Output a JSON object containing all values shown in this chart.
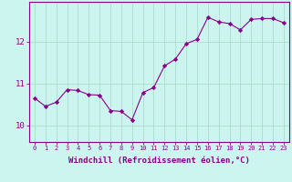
{
  "x": [
    0,
    1,
    2,
    3,
    4,
    5,
    6,
    7,
    8,
    9,
    10,
    11,
    12,
    13,
    14,
    15,
    16,
    17,
    18,
    19,
    20,
    21,
    22,
    23
  ],
  "y": [
    10.65,
    10.45,
    10.55,
    10.85,
    10.83,
    10.73,
    10.72,
    10.35,
    10.33,
    10.13,
    10.78,
    10.9,
    11.42,
    11.58,
    11.95,
    12.05,
    12.58,
    12.47,
    12.43,
    12.28,
    12.53,
    12.55,
    12.55,
    12.45
  ],
  "line_color": "#880088",
  "marker": "D",
  "marker_size": 2.2,
  "bg_color": "#cdf5ef",
  "grid_color": "#aaddcc",
  "axis_color": "#880088",
  "tick_color": "#880088",
  "xlabel": "Windchill (Refroidissement éolien,°C)",
  "xlabel_fontsize": 6.5,
  "xtick_fontsize": 5.0,
  "ytick_fontsize": 6.5,
  "ylabel_ticks": [
    10,
    11,
    12
  ],
  "ylim": [
    9.6,
    12.95
  ],
  "xlim": [
    -0.5,
    23.5
  ]
}
